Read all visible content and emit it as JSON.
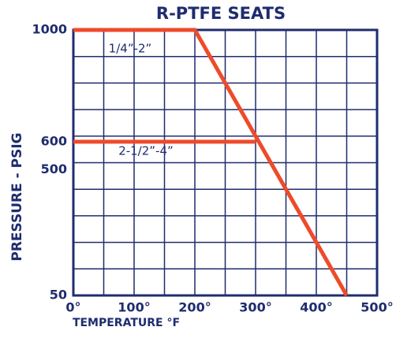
{
  "chart_data": {
    "type": "line",
    "title": "R-PTFE SEATS",
    "xlabel": "TEMPERATURE °F",
    "ylabel": "PRESSURE - PSIG",
    "series": [
      {
        "name": "1/4”-2”",
        "color": "#ee4b2b",
        "x": [
          0,
          200,
          450
        ],
        "values": [
          1000,
          1000,
          50
        ]
      },
      {
        "name": "2-1/2”-4”",
        "color": "#ee4b2b",
        "x": [
          0,
          300
        ],
        "values": [
          600,
          600
        ]
      }
    ],
    "xlim": [
      0,
      500
    ],
    "xticks": [
      {
        "value": 0,
        "label": "0°"
      },
      {
        "value": 100,
        "label": "100°"
      },
      {
        "value": 200,
        "label": "200°"
      },
      {
        "value": 300,
        "label": "300°"
      },
      {
        "value": 400,
        "label": "400°"
      },
      {
        "value": 500,
        "label": "500°"
      }
    ],
    "xgrid": [
      0,
      50,
      100,
      150,
      200,
      250,
      300,
      350,
      400,
      450,
      500
    ],
    "ylim": [
      50,
      1000
    ],
    "yticks": [
      50,
      500,
      600,
      1000
    ],
    "ygrid": [
      50,
      145,
      240,
      335,
      430,
      525,
      620,
      715,
      810,
      905,
      1000
    ],
    "grid": true
  }
}
